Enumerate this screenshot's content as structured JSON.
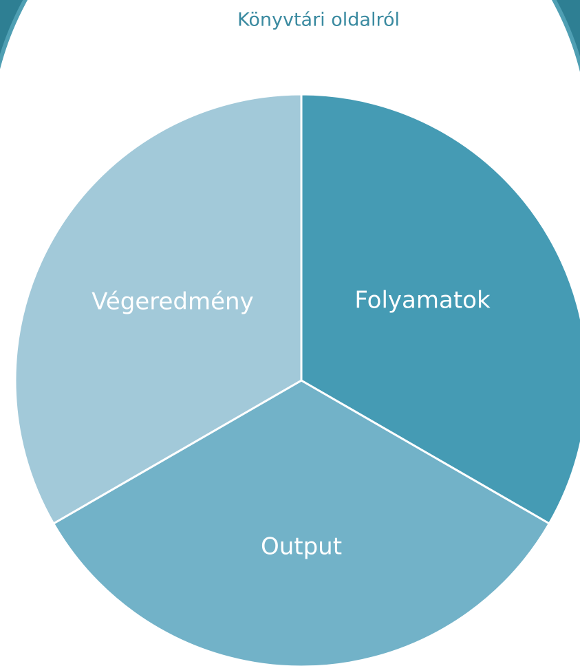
{
  "title": "Könyvtári oldalról",
  "nodes": [
    {
      "label": "Folyamatok"
    },
    {
      "label": "Output"
    },
    {
      "label": "Végeredmény"
    }
  ]
}
